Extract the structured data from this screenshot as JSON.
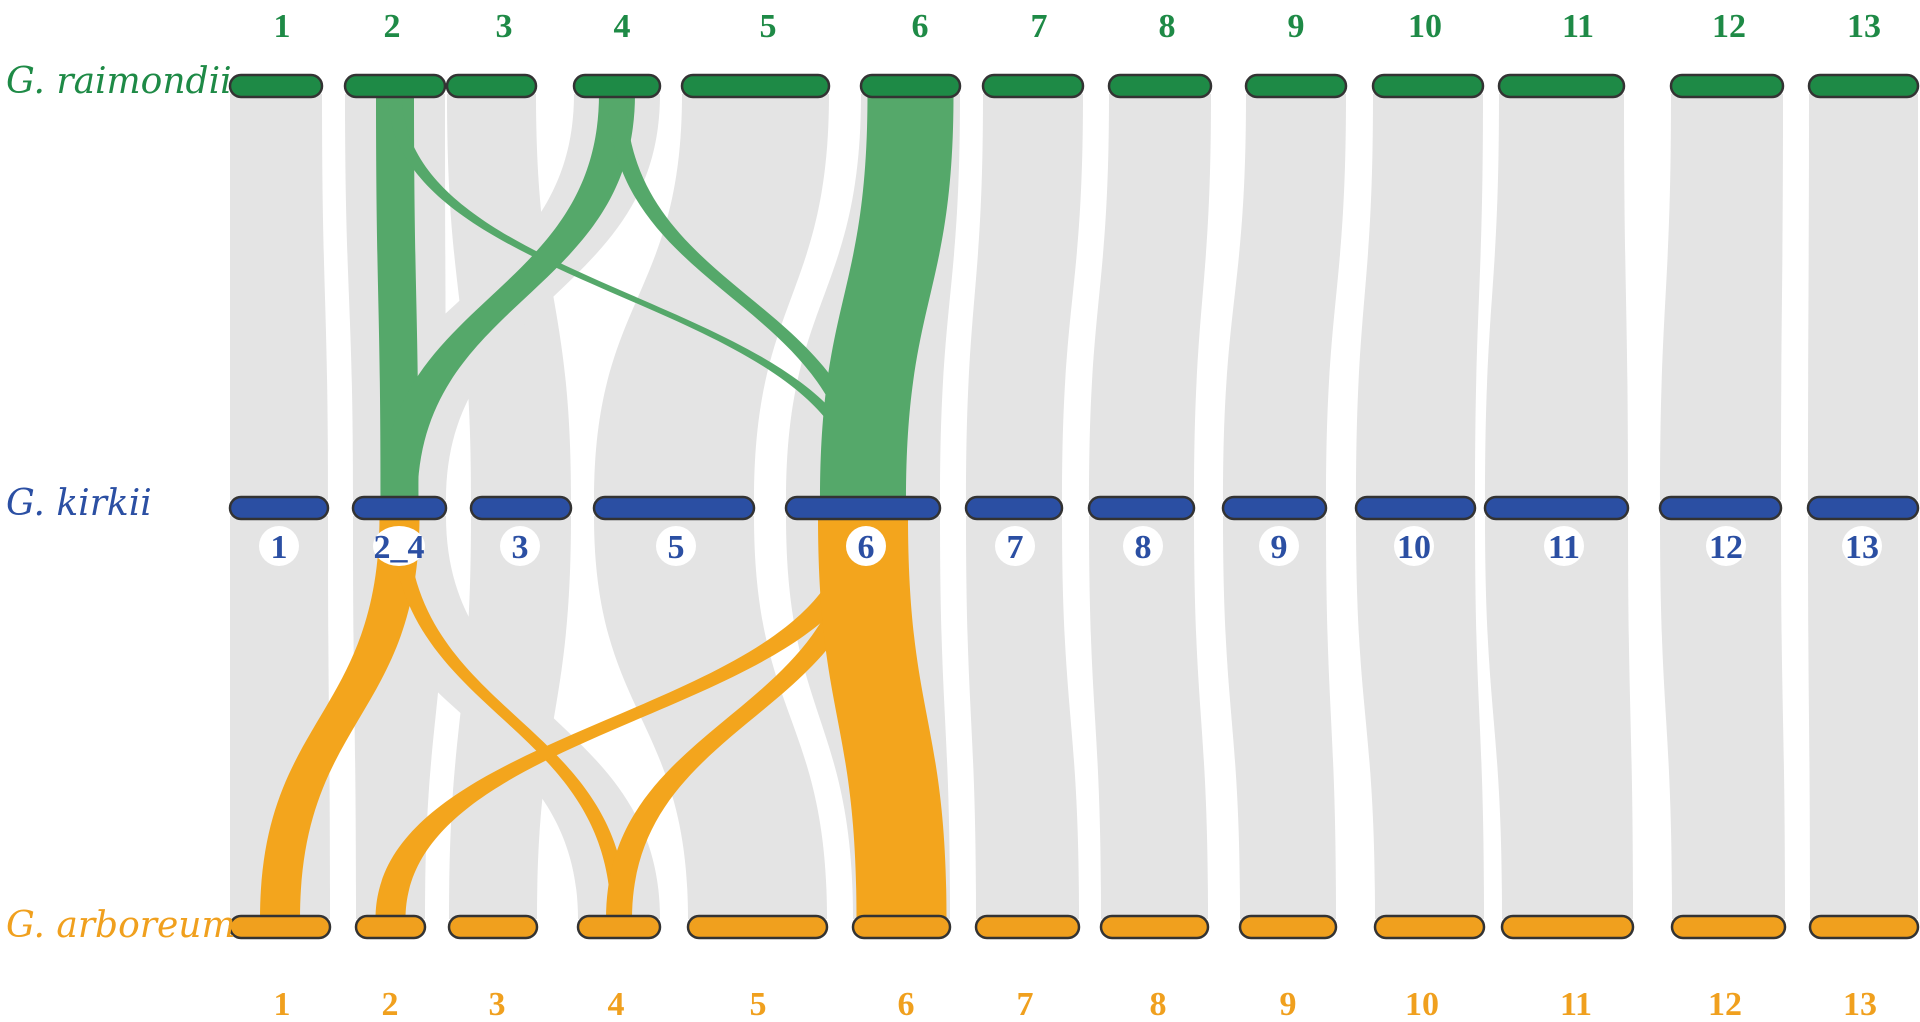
{
  "species": {
    "top": {
      "name": "G. raimondii",
      "color": "#1e8a46"
    },
    "middle": {
      "name": "G. kirkii",
      "color": "#2b4fa3"
    },
    "bottom": {
      "name": "G. arboreum",
      "color": "#f0a01e"
    }
  },
  "chromosomes": {
    "top": [
      "1",
      "2",
      "3",
      "4",
      "5",
      "6",
      "7",
      "8",
      "9",
      "10",
      "11",
      "12",
      "13"
    ],
    "middle": [
      "1",
      "2_4",
      "3",
      "5",
      "6",
      "7",
      "8",
      "9",
      "10",
      "11",
      "12",
      "13"
    ],
    "bottom": [
      "1",
      "2",
      "3",
      "4",
      "5",
      "6",
      "7",
      "8",
      "9",
      "10",
      "11",
      "12",
      "13"
    ]
  },
  "links": {
    "background_color": "#e4e4e4",
    "top_highlight_color": "#55a86a",
    "bottom_highlight_color": "#f3a51d",
    "top_highlighted": [
      {
        "from": "2",
        "to": "2_4"
      },
      {
        "from": "2",
        "to": "6"
      },
      {
        "from": "4",
        "to": "2_4"
      },
      {
        "from": "4",
        "to": "6"
      },
      {
        "from": "6",
        "to": "6"
      }
    ],
    "bottom_highlighted": [
      {
        "from": "2_4",
        "to": "1"
      },
      {
        "from": "2_4",
        "to": "4"
      },
      {
        "from": "6",
        "to": "2"
      },
      {
        "from": "6",
        "to": "4"
      },
      {
        "from": "6",
        "to": "6"
      }
    ]
  }
}
